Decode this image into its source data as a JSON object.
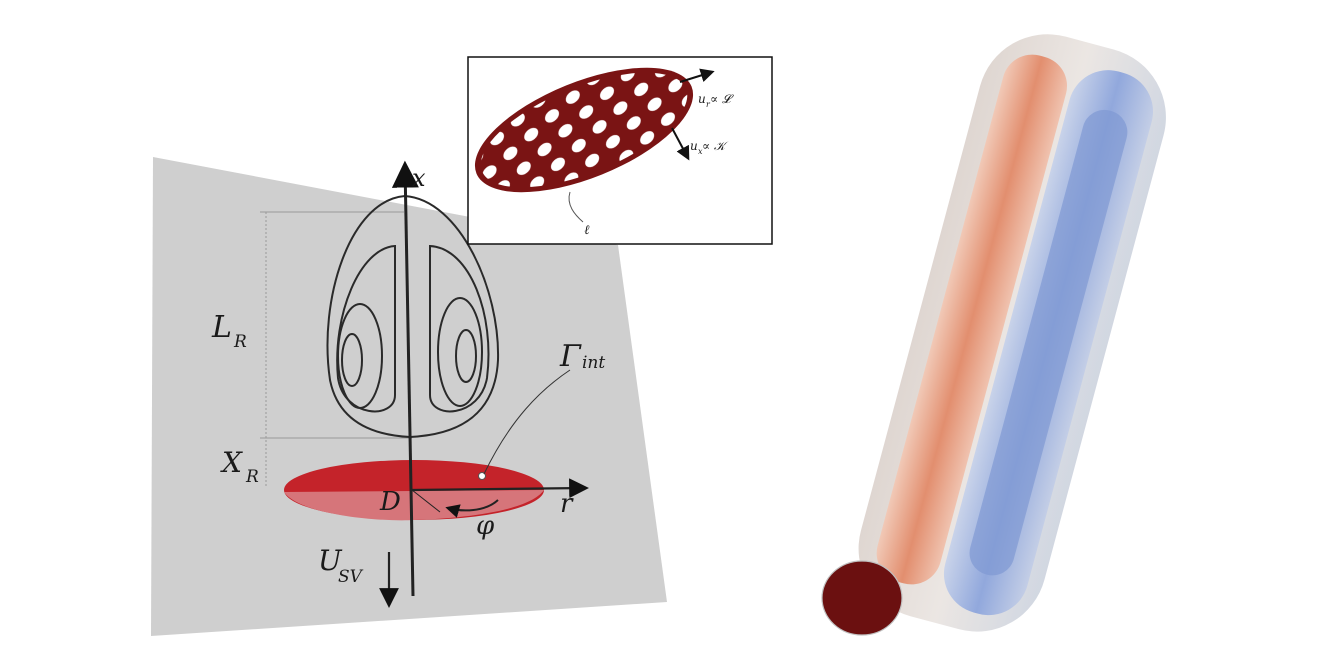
{
  "left_diagram": {
    "labels": {
      "x_axis": "x",
      "r_axis": "r",
      "L": "L",
      "L_sub": "R",
      "X": "X",
      "X_sub": "R",
      "Gamma": "Γ",
      "Gamma_sub": "int",
      "D": "D",
      "phi": "φ",
      "U": "U",
      "U_sub": "SV"
    }
  },
  "inset": {
    "labels": {
      "ur_main": "u",
      "ur_sub": "r",
      "ur_rest": " ∝ 𝓛",
      "ux_main": "u",
      "ux_sub": "x",
      "ux_rest": " ∝ 𝒦",
      "ell": "ℓ"
    }
  },
  "colors": {
    "plane": "#cfcfcf",
    "disk_red": "#c4232a",
    "inset_disk": "#7a1414",
    "rod_red": "#e08a6a",
    "rod_blue": "#8ea6d8",
    "rod_cap": "#6b1010"
  }
}
